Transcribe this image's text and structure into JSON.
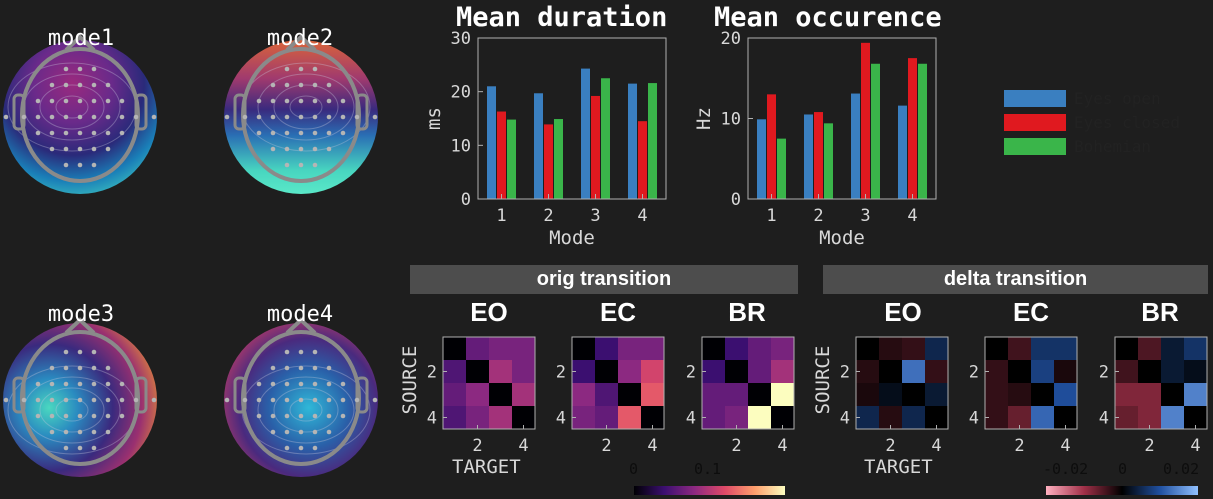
{
  "topomaps": [
    {
      "label": "mode1"
    },
    {
      "label": "mode2"
    },
    {
      "label": "mode3"
    },
    {
      "label": "mode4"
    }
  ],
  "chart_data": [
    {
      "type": "bar",
      "title": "Mean duration",
      "xlabel": "Mode",
      "ylabel": "ms",
      "categories": [
        "1",
        "2",
        "3",
        "4"
      ],
      "ylim": [
        0,
        30
      ],
      "yticks": [
        "0",
        "10",
        "20",
        "30"
      ],
      "series": [
        {
          "name": "Eyes open",
          "color": "#3a7fc0",
          "values": [
            21,
            19.7,
            24.3,
            21.5
          ]
        },
        {
          "name": "Eyes closed",
          "color": "#e0191f",
          "values": [
            16.3,
            13.9,
            19.2,
            14.5
          ]
        },
        {
          "name": "Bohemian",
          "color": "#3ab54a",
          "values": [
            14.8,
            14.9,
            22.5,
            21.6
          ]
        }
      ]
    },
    {
      "type": "bar",
      "title": "Mean occurence",
      "xlabel": "Mode",
      "ylabel": "Hz",
      "categories": [
        "1",
        "2",
        "3",
        "4"
      ],
      "ylim": [
        0,
        20
      ],
      "yticks": [
        "0",
        "10",
        "20"
      ],
      "series": [
        {
          "name": "Eyes open",
          "color": "#3a7fc0",
          "values": [
            9.9,
            10.5,
            13.1,
            11.6
          ]
        },
        {
          "name": "Eyes closed",
          "color": "#e0191f",
          "values": [
            13,
            10.8,
            19.4,
            17.5
          ]
        },
        {
          "name": "Bohemian",
          "color": "#3ab54a",
          "values": [
            7.5,
            9.4,
            16.8,
            16.8
          ]
        }
      ]
    }
  ],
  "legend": [
    {
      "name": "Eyes open",
      "color": "#3a7fc0"
    },
    {
      "name": "Eyes closed",
      "color": "#e0191f"
    },
    {
      "name": "Bohemian",
      "color": "#3ab54a"
    }
  ],
  "orig": {
    "banner": "orig transition",
    "ylabel": "SOURCE",
    "xlabel": "TARGET",
    "yticks": [
      "2",
      "4"
    ],
    "xticks": [
      "2",
      "4"
    ],
    "colorbar_ticks": [
      "0",
      "0.1"
    ],
    "range": [
      0,
      0.16
    ],
    "matrices": [
      {
        "title": "EO",
        "values": [
          [
            0,
            0.06,
            0.07,
            0.07
          ],
          [
            0.05,
            0,
            0.09,
            0.07
          ],
          [
            0.06,
            0.08,
            0,
            0.09
          ],
          [
            0.05,
            0.07,
            0.09,
            0
          ]
        ]
      },
      {
        "title": "EC",
        "values": [
          [
            0,
            0.04,
            0.07,
            0.07
          ],
          [
            0.04,
            0,
            0.08,
            0.11
          ],
          [
            0.08,
            0.05,
            0,
            0.12
          ],
          [
            0.07,
            0.06,
            0.12,
            0
          ]
        ]
      },
      {
        "title": "BR",
        "values": [
          [
            0,
            0.04,
            0.06,
            0.07
          ],
          [
            0.04,
            0,
            0.06,
            0.09
          ],
          [
            0.06,
            0.06,
            0,
            0.16
          ],
          [
            0.06,
            0.07,
            0.16,
            0
          ]
        ]
      }
    ]
  },
  "delta": {
    "banner": "delta transition",
    "ylabel": "SOURCE",
    "xlabel": "TARGET",
    "yticks": [
      "2",
      "4"
    ],
    "xticks": [
      "2",
      "4"
    ],
    "colorbar_ticks": [
      "-0.02",
      "0",
      "0.02"
    ],
    "range": [
      -0.025,
      0.025
    ],
    "matrices": [
      {
        "title": "EO",
        "values": [
          [
            0,
            -0.003,
            -0.004,
            0.006
          ],
          [
            -0.003,
            0,
            0.016,
            -0.004
          ],
          [
            -0.002,
            0.002,
            0,
            0.004
          ],
          [
            0.006,
            -0.003,
            0.006,
            0
          ]
        ]
      },
      {
        "title": "EC",
        "values": [
          [
            0,
            -0.005,
            0.008,
            0.008
          ],
          [
            -0.004,
            0,
            0.01,
            -0.002
          ],
          [
            -0.004,
            -0.003,
            0,
            0.012
          ],
          [
            -0.004,
            -0.008,
            0.015,
            0
          ]
        ]
      },
      {
        "title": "BR",
        "values": [
          [
            0,
            -0.006,
            0.004,
            0.008
          ],
          [
            -0.005,
            0,
            0.004,
            0.002
          ],
          [
            -0.01,
            -0.01,
            0,
            0.018
          ],
          [
            -0.008,
            -0.01,
            0.018,
            0
          ]
        ]
      }
    ]
  }
}
